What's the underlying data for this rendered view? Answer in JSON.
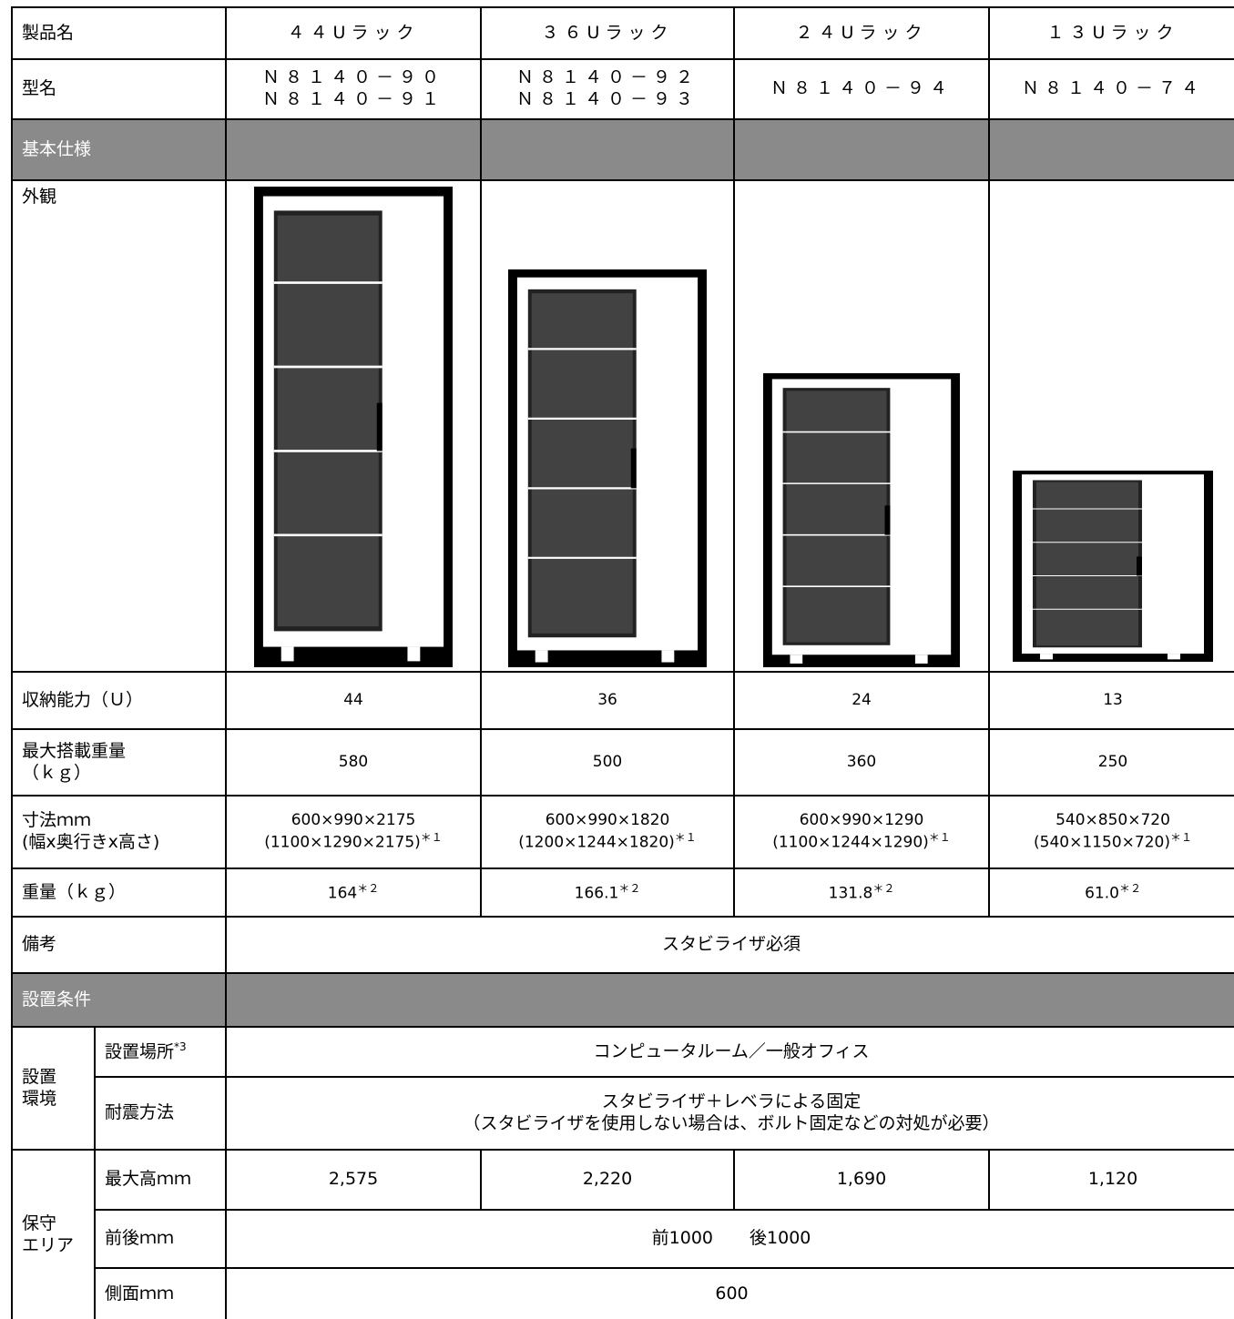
{
  "table": {
    "header": {
      "label": "製品名",
      "products": [
        "４４Uラック",
        "３６Uラック",
        "２４Uラック",
        "１３Uラック"
      ]
    },
    "model": {
      "label": "型名",
      "values": [
        [
          "Ｎ８１４０－９０",
          "Ｎ８１４０－９１"
        ],
        [
          "Ｎ８１４０－９２",
          "Ｎ８１４０－９３"
        ],
        [
          "Ｎ８１４０－９４"
        ],
        [
          "Ｎ８１４０－７４"
        ]
      ]
    },
    "section1": "基本仕様",
    "appearance": "外観",
    "capacity": {
      "label": "収納能力（Ｕ）",
      "values": [
        "44",
        "36",
        "24",
        "13"
      ]
    },
    "max_load": {
      "label": [
        "最大搭載重量",
        "（ｋｇ）"
      ],
      "values": [
        "580",
        "500",
        "360",
        "250"
      ]
    },
    "dimensions": {
      "label": [
        "寸法ｍｍ",
        "(幅x奥行きx高さ)"
      ],
      "values": [
        {
          "main": "600×990×2175",
          "alt": "(1100×1290×2175)",
          "note": "＊１"
        },
        {
          "main": "600×990×1820",
          "alt": "(1200×1244×1820)",
          "note": "＊１"
        },
        {
          "main": "600×990×1290",
          "alt": "(1100×1244×1290)",
          "note": "＊１"
        },
        {
          "main": "540×850×720",
          "alt": "(540×1150×720)",
          "note": "＊１"
        }
      ]
    },
    "weight": {
      "label": "重量（ｋｇ）",
      "values": [
        {
          "text": "164",
          "note": "＊２"
        },
        {
          "text": "166.1",
          "note": "＊２"
        },
        {
          "text": "131.8",
          "note": "＊２"
        },
        {
          "text": "61.0",
          "note": "＊２"
        }
      ]
    },
    "remarks": {
      "label": "備考",
      "value": "スタビライザ必須"
    },
    "section2": "設置条件",
    "environment": {
      "label": [
        "設置",
        "環境"
      ],
      "place": {
        "label": "設置場所",
        "note": "*3",
        "value": "コンピュータルーム／一般オフィス"
      },
      "seismic": {
        "label": "耐震方法",
        "value": [
          "スタビライザ＋レベラによる固定",
          "（スタビライザを使用しない場合は、ボルト固定などの対処が必要）"
        ]
      }
    },
    "maintenance": {
      "label": [
        "保守",
        "エリア"
      ],
      "max_height": {
        "label": "最大高ｍｍ",
        "values": [
          "2,575",
          "2,220",
          "1,690",
          "1,120"
        ]
      },
      "front_back": {
        "label": "前後ｍｍ",
        "values": [
          "前1000",
          "後1000"
        ]
      },
      "side": {
        "label": "側面ｍｍ",
        "value": "600"
      }
    }
  }
}
